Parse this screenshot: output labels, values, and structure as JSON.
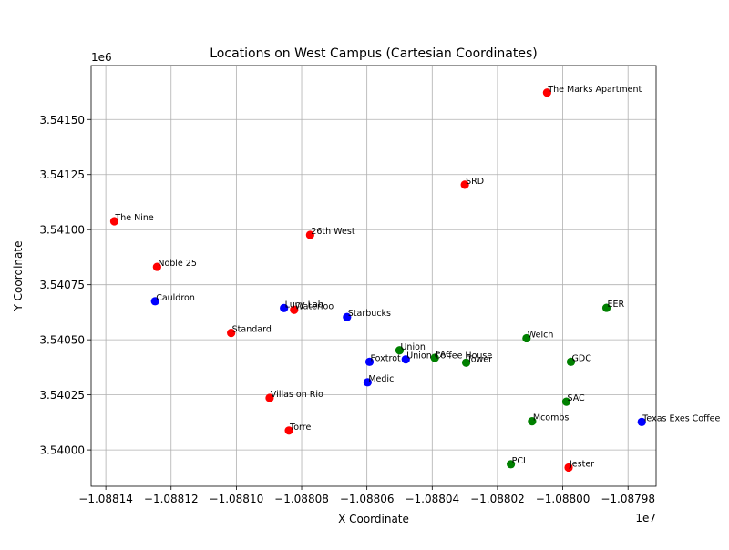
{
  "chart_data": {
    "type": "scatter",
    "title": "Locations on West Campus (Cartesian Coordinates)",
    "xlabel": "X Coordinate",
    "ylabel": "Y Coordinate",
    "x_offset_label": "1e7",
    "y_offset_label": "1e6",
    "xlim": [
      -1.0881445,
      -1.0879714
    ],
    "ylim": [
      3.539835,
      3.541745
    ],
    "x_ticks": [
      -1.08814,
      -1.08812,
      -1.0881,
      -1.08808,
      -1.08806,
      -1.08804,
      -1.08802,
      -1.088,
      -1.08798
    ],
    "x_tick_labels": [
      "−1.08814",
      "−1.08812",
      "−1.08810",
      "−1.08808",
      "−1.08806",
      "−1.08804",
      "−1.08802",
      "−1.08800",
      "−1.08798"
    ],
    "y_ticks": [
      3.54,
      3.54025,
      3.5405,
      3.54075,
      3.541,
      3.54125,
      3.5415
    ],
    "y_tick_labels": [
      "3.54000",
      "3.54025",
      "3.54050",
      "3.54075",
      "3.54100",
      "3.54125",
      "3.54150"
    ],
    "grid": true,
    "colors": {
      "red": "#ff0000",
      "blue": "#0000ff",
      "green": "#008000"
    },
    "points": [
      {
        "label": "The Marks Apartment",
        "x": -1.0880048,
        "y": 3.541622,
        "color": "red"
      },
      {
        "label": "SRD",
        "x": -1.08803,
        "y": 3.541204,
        "color": "red"
      },
      {
        "label": "The Nine",
        "x": -1.0881374,
        "y": 3.541038,
        "color": "red"
      },
      {
        "label": "26th West",
        "x": -1.0880774,
        "y": 3.540976,
        "color": "red"
      },
      {
        "label": "Noble 25",
        "x": -1.0881243,
        "y": 3.540831,
        "color": "red"
      },
      {
        "label": "Waterloo",
        "x": -1.0880823,
        "y": 3.540636,
        "color": "red"
      },
      {
        "label": "Standard",
        "x": -1.0881016,
        "y": 3.540531,
        "color": "red"
      },
      {
        "label": "Villas on Rio",
        "x": -1.0880898,
        "y": 3.540236,
        "color": "red"
      },
      {
        "label": "Torre",
        "x": -1.0880839,
        "y": 3.540088,
        "color": "red"
      },
      {
        "label": "Jester",
        "x": -1.0879982,
        "y": 3.53992,
        "color": "red"
      },
      {
        "label": "Cauldron",
        "x": -1.0881249,
        "y": 3.540675,
        "color": "blue"
      },
      {
        "label": "Lucy Lab",
        "x": -1.0880854,
        "y": 3.540644,
        "color": "blue"
      },
      {
        "label": "Starbucks",
        "x": -1.0880661,
        "y": 3.540603,
        "color": "blue"
      },
      {
        "label": "Foxtrot",
        "x": -1.0880592,
        "y": 3.5404,
        "color": "blue"
      },
      {
        "label": "Union Coffee House",
        "x": -1.0880481,
        "y": 3.540411,
        "color": "blue"
      },
      {
        "label": "Medici",
        "x": -1.0880598,
        "y": 3.540307,
        "color": "blue"
      },
      {
        "label": "Texas Exes Coffee",
        "x": -1.0879758,
        "y": 3.540127,
        "color": "blue"
      },
      {
        "label": "Union",
        "x": -1.08805,
        "y": 3.540452,
        "color": "green"
      },
      {
        "label": "FAC",
        "x": -1.0880392,
        "y": 3.540418,
        "color": "green"
      },
      {
        "label": "Tower",
        "x": -1.0880296,
        "y": 3.540396,
        "color": "green"
      },
      {
        "label": "Welch",
        "x": -1.0880111,
        "y": 3.540507,
        "color": "green"
      },
      {
        "label": "EER",
        "x": -1.0879866,
        "y": 3.540645,
        "color": "green"
      },
      {
        "label": "GDC",
        "x": -1.0879975,
        "y": 3.5404,
        "color": "green"
      },
      {
        "label": "SAC",
        "x": -1.0879989,
        "y": 3.540219,
        "color": "green"
      },
      {
        "label": "Mcombs",
        "x": -1.0880094,
        "y": 3.54013,
        "color": "green"
      },
      {
        "label": "PCL",
        "x": -1.0880159,
        "y": 3.539935,
        "color": "green"
      }
    ]
  }
}
